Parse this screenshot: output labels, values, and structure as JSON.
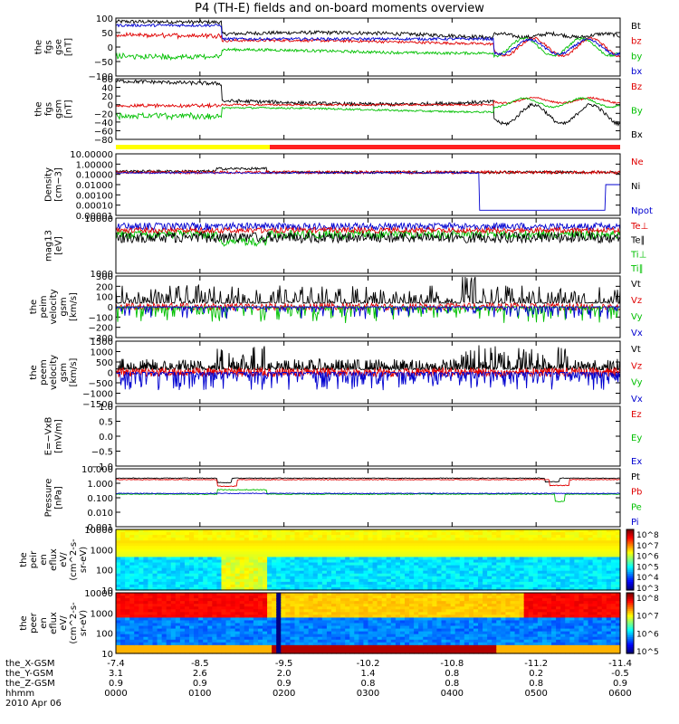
{
  "title": "P4 (TH-E) fields and on-board moments overview",
  "date_label": "2010 Apr 06",
  "chart_data": {
    "type": "line",
    "x_axis": {
      "time_ticks": [
        "0000",
        "0100",
        "0200",
        "0300",
        "0400",
        "0500",
        "0600"
      ],
      "rows": [
        {
          "label": "the_X-GSM",
          "values": [
            "-7.4",
            "-8.5",
            "-9.5",
            "-10.2",
            "-10.8",
            "-11.2",
            "-11.4"
          ]
        },
        {
          "label": "the_Y-GSM",
          "values": [
            "3.1",
            "2.6",
            "2.0",
            "1.4",
            "0.8",
            "0.2",
            "-0.5"
          ]
        },
        {
          "label": "the_Z-GSM",
          "values": [
            "0.9",
            "0.9",
            "0.9",
            "0.8",
            "0.8",
            "0.8",
            "0.9"
          ]
        },
        {
          "label": "hhmm",
          "values": [
            "0000",
            "0100",
            "0200",
            "0300",
            "0400",
            "0500",
            "0600"
          ]
        }
      ]
    },
    "panels": [
      {
        "ylabel": [
          "the",
          "fgs",
          "gse",
          "[nT]"
        ],
        "ticks": [
          "100",
          "50",
          "0",
          "−50",
          "−100"
        ],
        "legend": [
          {
            "name": "Bt",
            "color": "#000000"
          },
          {
            "name": "bz",
            "color": "#e00000"
          },
          {
            "name": "by",
            "color": "#00c000"
          },
          {
            "name": "bx",
            "color": "#0000d0"
          }
        ]
      },
      {
        "ylabel": [
          "the",
          "fgs",
          "gsm",
          "[nT]"
        ],
        "ticks": [
          "60",
          "40",
          "20",
          "0",
          "−20",
          "−40",
          "−60",
          "−80"
        ],
        "legend": [
          {
            "name": "Bz",
            "color": "#e00000"
          },
          {
            "name": "By",
            "color": "#00c000"
          },
          {
            "name": "Bx",
            "color": "#000000"
          }
        ]
      },
      {
        "ylabel": [
          "Density",
          "[cm−3]"
        ],
        "ticks": [
          "10.00000",
          "1.00000",
          "0.10000",
          "0.01000",
          "0.00100",
          "0.00010",
          "0.00001"
        ],
        "legend": [
          {
            "name": "Ne",
            "color": "#e00000"
          },
          {
            "name": "Ni",
            "color": "#000000"
          },
          {
            "name": "Npot",
            "color": "#0000d0"
          }
        ]
      },
      {
        "ylabel": [
          "mag13",
          "[eV]"
        ],
        "ticks": [
          "10000",
          "1000"
        ],
        "legend": [
          {
            "name": "Te⊥",
            "color": "#e00000"
          },
          {
            "name": "Te∥",
            "color": "#000000"
          },
          {
            "name": "Ti⊥",
            "color": "#00c000"
          },
          {
            "name": "Ti∥",
            "color": "#00c000"
          }
        ]
      },
      {
        "ylabel": [
          "the",
          "peim",
          "velocity",
          "gsm",
          "[km/s]"
        ],
        "ticks": [
          "300",
          "200",
          "100",
          "0",
          "−100",
          "−200",
          "−300"
        ],
        "legend": [
          {
            "name": "Vt",
            "color": "#000000"
          },
          {
            "name": "Vz",
            "color": "#e00000"
          },
          {
            "name": "Vy",
            "color": "#00c000"
          },
          {
            "name": "Vx",
            "color": "#0000d0"
          }
        ]
      },
      {
        "ylabel": [
          "the",
          "peem",
          "velocity",
          "gsm",
          "[km/s]"
        ],
        "ticks": [
          "1500",
          "1000",
          "500",
          "0",
          "−500",
          "−1000",
          "−1500"
        ],
        "legend": [
          {
            "name": "Vt",
            "color": "#000000"
          },
          {
            "name": "Vz",
            "color": "#e00000"
          },
          {
            "name": "Vy",
            "color": "#00c000"
          },
          {
            "name": "Vx",
            "color": "#0000d0"
          }
        ]
      },
      {
        "ylabel": [
          "E=−VxB",
          "[mV/m]"
        ],
        "ticks": [
          "1.0",
          "0.5",
          "0.0",
          "−0.5",
          "−1.0"
        ],
        "legend": [
          {
            "name": "Ez",
            "color": "#e00000"
          },
          {
            "name": "Ey",
            "color": "#00c000"
          },
          {
            "name": "Ex",
            "color": "#0000d0"
          }
        ]
      },
      {
        "ylabel": [
          "Pressure",
          "[nPa]"
        ],
        "ticks": [
          "10.000",
          "1.000",
          "0.100",
          "0.010",
          "0.001"
        ],
        "legend": [
          {
            "name": "Pt",
            "color": "#000000"
          },
          {
            "name": "Pb",
            "color": "#e00000"
          },
          {
            "name": "Pe",
            "color": "#00c000"
          },
          {
            "name": "Pi",
            "color": "#0000d0"
          }
        ]
      },
      {
        "ylabel": [
          "the",
          "peir",
          "en",
          "eflux",
          "eV/",
          "(cm^2-s-",
          "sr-eV)"
        ],
        "ticks": [
          "10000",
          "1000",
          "100",
          "10"
        ],
        "colorbar": [
          "10^8",
          "10^7",
          "10^6",
          "10^5",
          "10^4",
          "10^3"
        ]
      },
      {
        "ylabel": [
          "the",
          "peer",
          "en",
          "eflux",
          "eV/",
          "(cm^2-s-",
          "sr-eV)"
        ],
        "ticks": [
          "10000",
          "1000",
          "100",
          "10"
        ],
        "colorbar": [
          "10^8",
          "10^7",
          "10^6",
          "10^5"
        ]
      }
    ]
  }
}
